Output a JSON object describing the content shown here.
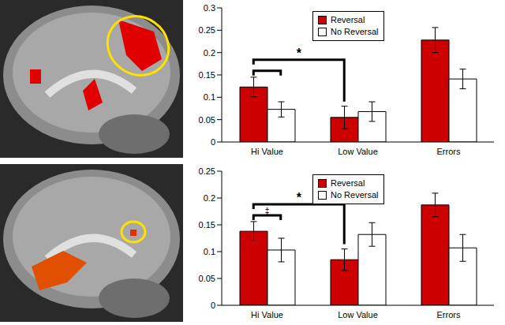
{
  "chart_data": [
    {
      "type": "bar",
      "categories": [
        "Hi Value",
        "Low Value",
        "Errors"
      ],
      "series": [
        {
          "name": "Reversal",
          "color": "#cc0000",
          "values": [
            0.123,
            0.055,
            0.228
          ],
          "errors": [
            0.022,
            0.025,
            0.028
          ]
        },
        {
          "name": "No Reversal",
          "color": "#ffffff",
          "values": [
            0.073,
            0.068,
            0.141
          ],
          "errors": [
            0.017,
            0.022,
            0.022
          ]
        }
      ],
      "ylim": [
        0,
        0.3
      ],
      "yticks": [
        0,
        0.05,
        0.1,
        0.15,
        0.2,
        0.25,
        0.3
      ],
      "legend": "top",
      "annotations": [
        "*"
      ]
    },
    {
      "type": "bar",
      "categories": [
        "Hi Value",
        "Low Value",
        "Errors"
      ],
      "series": [
        {
          "name": "Reversal",
          "color": "#cc0000",
          "values": [
            0.138,
            0.085,
            0.187
          ],
          "errors": [
            0.018,
            0.02,
            0.022
          ]
        },
        {
          "name": "No Reversal",
          "color": "#ffffff",
          "values": [
            0.103,
            0.132,
            0.107
          ],
          "errors": [
            0.022,
            0.022,
            0.025
          ]
        }
      ],
      "ylim": [
        0,
        0.25
      ],
      "yticks": [
        0,
        0.05,
        0.1,
        0.15,
        0.2,
        0.25
      ],
      "legend": "top",
      "annotations": [
        "*",
        "‡"
      ]
    }
  ]
}
